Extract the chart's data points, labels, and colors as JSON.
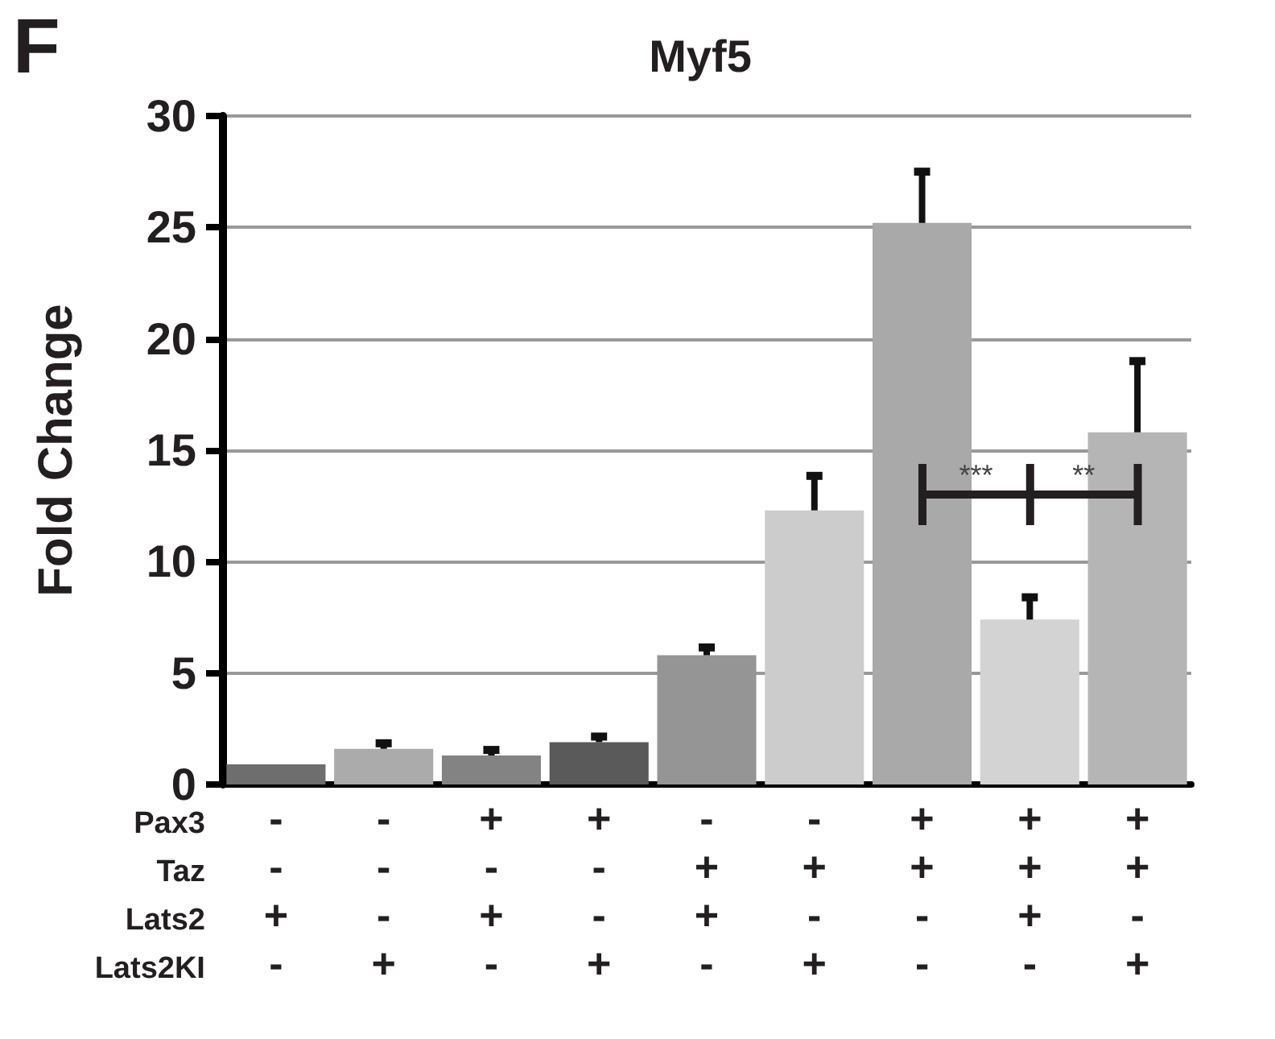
{
  "chart_data": {
    "type": "bar",
    "title": "Myf5",
    "ylabel": "Fold Change",
    "categories": [
      "-\n-\n+\n-",
      "-\n-\n-\n+",
      "+\n-\n+\n-",
      "+\n-\n-\n+",
      "-\n+\n+\n-",
      "-\n+\n-\n+",
      "+\n+\n-\n-",
      "+\n+\n+\n-",
      "+\n+\n-\n+"
    ],
    "values": [
      0.9,
      1.6,
      1.3,
      1.9,
      5.8,
      12.3,
      25.2,
      7.4,
      15.8
    ],
    "colors": [
      "#6e6e6e",
      "#ababab",
      "#838383",
      "#5a5a5a",
      "#959595",
      "#cccccc",
      "#a8a9a8",
      "#d3d3d3",
      "#b5b5b5"
    ],
    "errors": [
      null,
      [
        1.6,
        1.85
      ],
      [
        1.3,
        1.55
      ],
      [
        1.9,
        2.15
      ],
      [
        5.8,
        6.15
      ],
      [
        12.3,
        13.85
      ],
      [
        25.2,
        27.5
      ],
      [
        7.4,
        8.4
      ],
      [
        15.8,
        19.0
      ]
    ],
    "annotations": [
      "F",
      "Pax3",
      "Taz",
      "Lats2",
      "Lats2KI",
      {
        "text": "***",
        "y": 13
      },
      {
        "text": "**",
        "y": 13
      }
    ],
    "ylim": [
      0,
      30
    ],
    "yticks": [
      0,
      5,
      10,
      15,
      20,
      25,
      30
    ],
    "grid": "y"
  }
}
